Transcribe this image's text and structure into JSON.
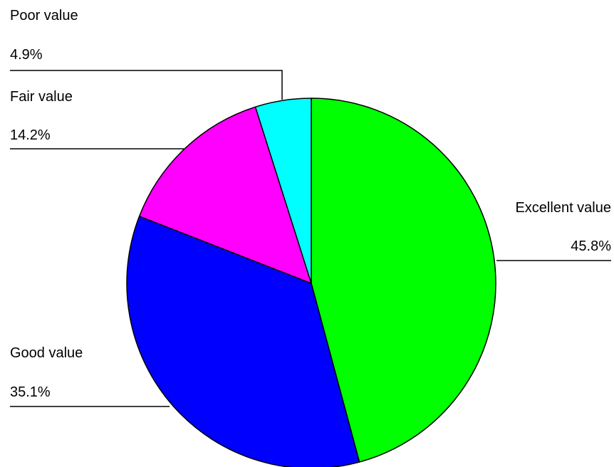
{
  "chart_data": {
    "type": "pie",
    "title": "",
    "slices": [
      {
        "label": "Excellent value",
        "value": 45.8,
        "value_label": "45.8%",
        "color": "#00ff00"
      },
      {
        "label": "Good value",
        "value": 35.1,
        "value_label": "35.1%",
        "color": "#0000ff"
      },
      {
        "label": "Fair value",
        "value": 14.2,
        "value_label": "14.2%",
        "color": "#ff00ff"
      },
      {
        "label": "Poor value",
        "value": 4.9,
        "value_label": "4.9%",
        "color": "#00ffff"
      }
    ],
    "start_angle": "12 o'clock",
    "direction": "clockwise",
    "legend": "none",
    "labels": "outside with leader lines",
    "border_color": "#000000"
  }
}
